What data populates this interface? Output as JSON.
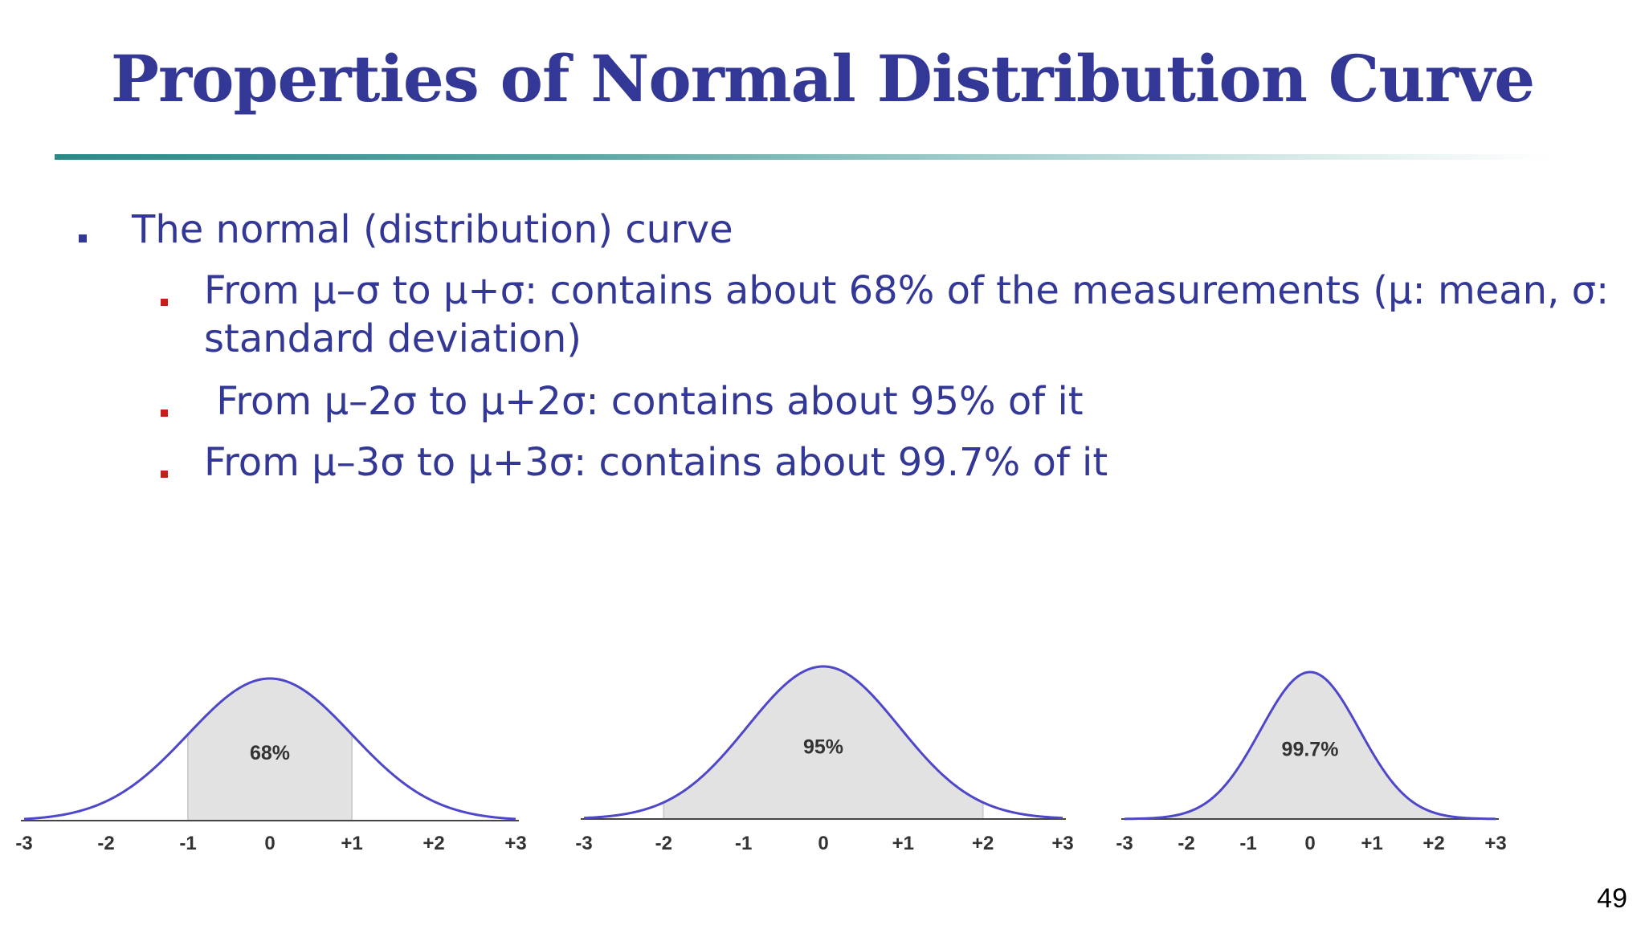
{
  "slide": {
    "title": "Properties of Normal Distribution Curve",
    "bullet_main": "The normal (distribution) curve",
    "sub_bullets": [
      {
        "line1": "From μ–σ to μ+σ: contains about 68% of the measurements  (μ: mean, σ:",
        "line2": "standard deviation)"
      },
      {
        "line1": " From μ–2σ to μ+2σ: contains about 95% of it"
      },
      {
        "line1": "From μ–3σ to μ+3σ: contains about 99.7% of it"
      }
    ],
    "page_number": "49",
    "colors": {
      "title": "#333896",
      "body_text": "#333896",
      "main_bullet": "#333896",
      "sub_bullet": "#cc1b1b",
      "curve": "#4e47c9",
      "shade": "#e2e2e2"
    }
  },
  "chart_data": [
    {
      "type": "area",
      "ticks": [
        "-3",
        "-2",
        "-1",
        "0",
        "+1",
        "+2",
        "+3"
      ],
      "shaded_range": [
        -1,
        1
      ],
      "label": "68%"
    },
    {
      "type": "area",
      "ticks": [
        "-3",
        "-2",
        "-1",
        "0",
        "+1",
        "+2",
        "+3"
      ],
      "shaded_range": [
        -2,
        2
      ],
      "label": "95%"
    },
    {
      "type": "area",
      "ticks": [
        "-3",
        "-2",
        "-1",
        "0",
        "+1",
        "+2",
        "+3"
      ],
      "shaded_range": [
        -3,
        3
      ],
      "label": "99.7%"
    }
  ]
}
